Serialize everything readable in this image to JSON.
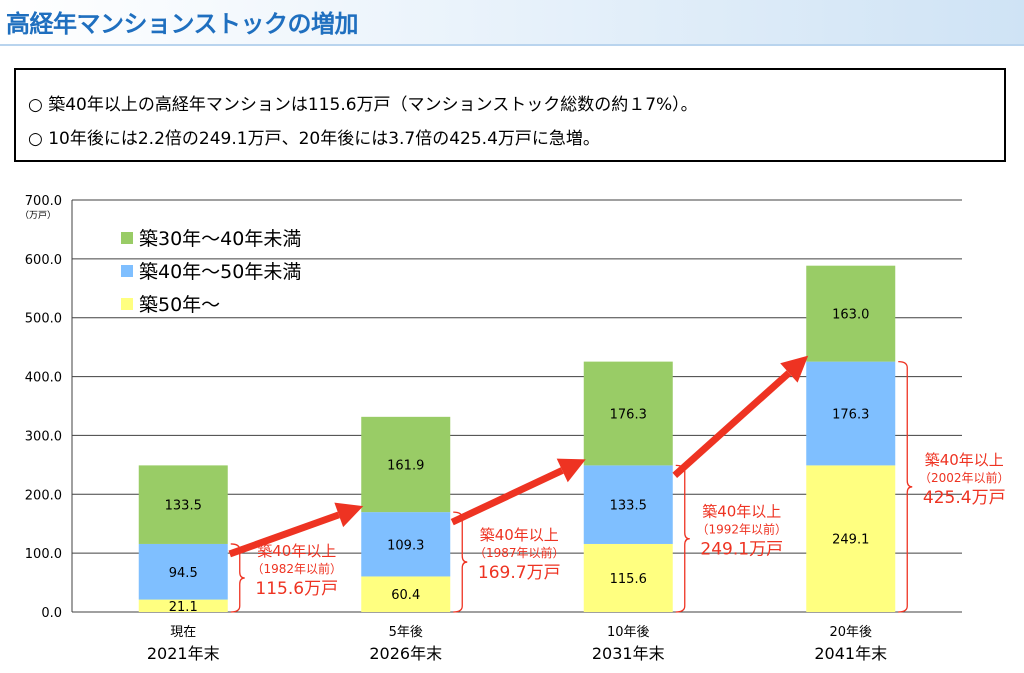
{
  "header": {
    "title": "高経年マンションストックの増加"
  },
  "summary": {
    "lines": [
      "○ 築40年以上の高経年マンションは115.6万戸（マンションストック総数の約１7%）。",
      "○ 10年後には2.2倍の249.1万戸、20年後には3.7倍の425.4万戸に急増。"
    ]
  },
  "chart_data": {
    "type": "bar",
    "stacked": true,
    "ylim": [
      0,
      700
    ],
    "yticks": [
      "0.0",
      "100.0",
      "200.0",
      "300.0",
      "400.0",
      "500.0",
      "600.0",
      "700.0"
    ],
    "ylabel": "（万戸）",
    "grid": true,
    "legend_position": "top-left",
    "categories": [
      {
        "label_top": "現在",
        "label_bottom": "2021年末"
      },
      {
        "label_top": "5年後",
        "label_bottom": "2026年末"
      },
      {
        "label_top": "10年後",
        "label_bottom": "2031年末"
      },
      {
        "label_top": "20年後",
        "label_bottom": "2041年末"
      }
    ],
    "series": [
      {
        "name": "築50年～",
        "color": "#ffff80",
        "values": [
          21.1,
          60.4,
          115.6,
          249.1
        ]
      },
      {
        "name": "築40年～50年未満",
        "color": "#7fbfff",
        "values": [
          94.5,
          109.3,
          133.5,
          176.3
        ]
      },
      {
        "name": "築30年～40年未満",
        "color": "#99cc66",
        "values": [
          133.5,
          161.9,
          176.3,
          163.0
        ]
      }
    ],
    "legend_order": [
      2,
      1,
      0
    ],
    "annotations": [
      {
        "line1": "築40年以上",
        "line2": "（1982年以前）",
        "value": "115.6万戸"
      },
      {
        "line1": "築40年以上",
        "line2": "（1987年以前）",
        "value": "169.7万戸"
      },
      {
        "line1": "築40年以上",
        "line2": "（1992年以前）",
        "value": "249.1万戸"
      },
      {
        "line1": "築40年以上",
        "line2": "（2002年以前）",
        "value": "425.4万戸"
      }
    ],
    "annotation_color": "#ee3322",
    "arrow_color": "#ee3322"
  }
}
